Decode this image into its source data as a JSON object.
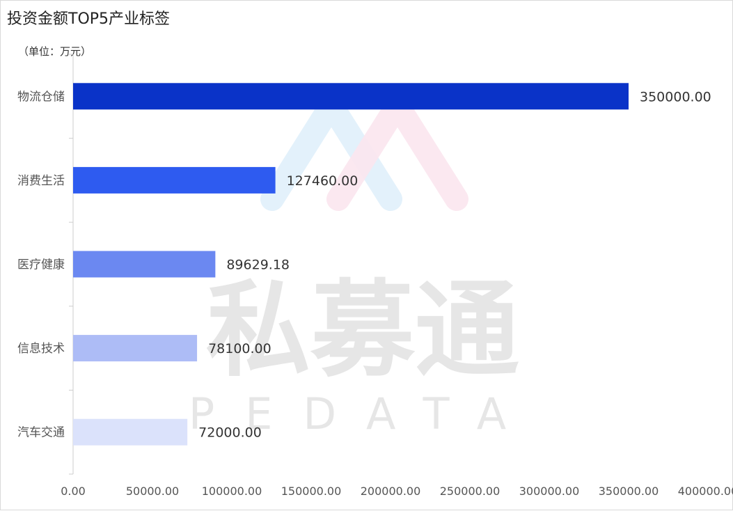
{
  "title": "投资金额TOP5产业标签",
  "unit_label": "（单位：万元）",
  "watermark": {
    "main": "私募通",
    "sub": "PEDATA"
  },
  "chart_data": {
    "type": "bar",
    "orientation": "horizontal",
    "title": "投资金额TOP5产业标签",
    "categories": [
      "物流仓储",
      "消费生活",
      "医疗健康",
      "信息技术",
      "汽车交通"
    ],
    "values": [
      350000.0,
      127460.0,
      89629.18,
      78100.0,
      72000.0
    ],
    "value_labels": [
      "350000.00",
      "127460.00",
      "89629.18",
      "78100.00",
      "72000.00"
    ],
    "colors": [
      "#0a33c8",
      "#2e5bf0",
      "#6b88f1",
      "#adbcf6",
      "#dbe2fb"
    ],
    "xlim": [
      0,
      400000
    ],
    "xticks": [
      "0.00",
      "50000.00",
      "100000.00",
      "150000.00",
      "200000.00",
      "250000.00",
      "300000.00",
      "350000.00",
      "400000.00"
    ],
    "grid": false,
    "legend": "none"
  }
}
